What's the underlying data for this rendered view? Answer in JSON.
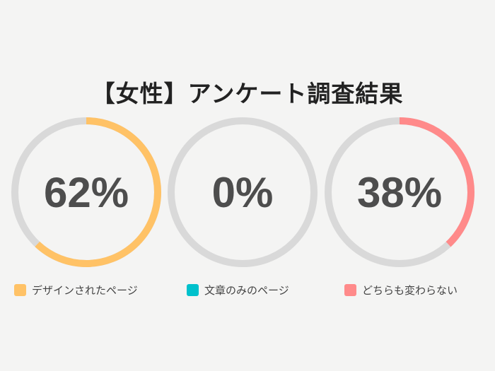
{
  "chart_data": {
    "type": "donut",
    "title": "【女性】アンケート調査結果",
    "track_color": "#d9d9d9",
    "series": [
      {
        "name": "デザインされたページ",
        "value": 62,
        "label": "62%",
        "color": "#ffc266"
      },
      {
        "name": "文章のみのページ",
        "value": 0,
        "label": "0%",
        "color": "#00c1cc"
      },
      {
        "name": "どちらも変わらない",
        "value": 38,
        "label": "38%",
        "color": "#ff8a8a"
      }
    ]
  }
}
